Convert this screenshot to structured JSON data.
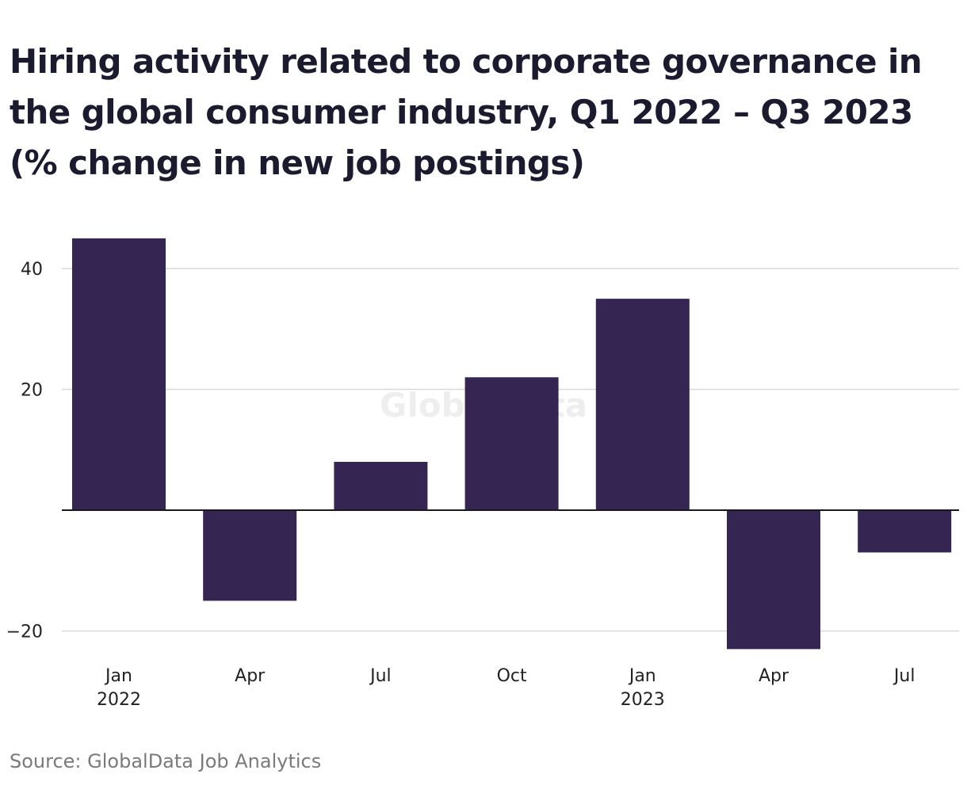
{
  "chart_data": {
    "type": "bar",
    "title": "Hiring activity related to corporate governance in the global consumer industry, Q1 2022 – Q3 2023 (% change in new job postings)",
    "categories": [
      "Jan 2022",
      "Apr 2022",
      "Jul 2022",
      "Oct 2022",
      "Jan 2023",
      "Apr 2023",
      "Jul 2023"
    ],
    "x_tick_labels": [
      {
        "month": "Jan",
        "year": "2022"
      },
      {
        "month": "Apr",
        "year": ""
      },
      {
        "month": "Jul",
        "year": ""
      },
      {
        "month": "Oct",
        "year": ""
      },
      {
        "month": "Jan",
        "year": "2023"
      },
      {
        "month": "Apr",
        "year": ""
      },
      {
        "month": "Jul",
        "year": ""
      }
    ],
    "values": [
      45,
      -15,
      8,
      22,
      35,
      -23,
      -7
    ],
    "ylim": [
      -24,
      48
    ],
    "y_ticks": [
      {
        "value": 40,
        "label": "40"
      },
      {
        "value": 20,
        "label": "20"
      },
      {
        "value": 0,
        "label": ""
      },
      {
        "value": -20,
        "label": "−20"
      }
    ],
    "xlabel": "",
    "ylabel": "",
    "grid": true,
    "bar_color": "#352552",
    "gridline_color": "#d9d9d9",
    "zero_line_color": "#1a1a1a",
    "watermark": "GlobalData"
  },
  "footer": {
    "source": "Source: GlobalData Job Analytics"
  }
}
